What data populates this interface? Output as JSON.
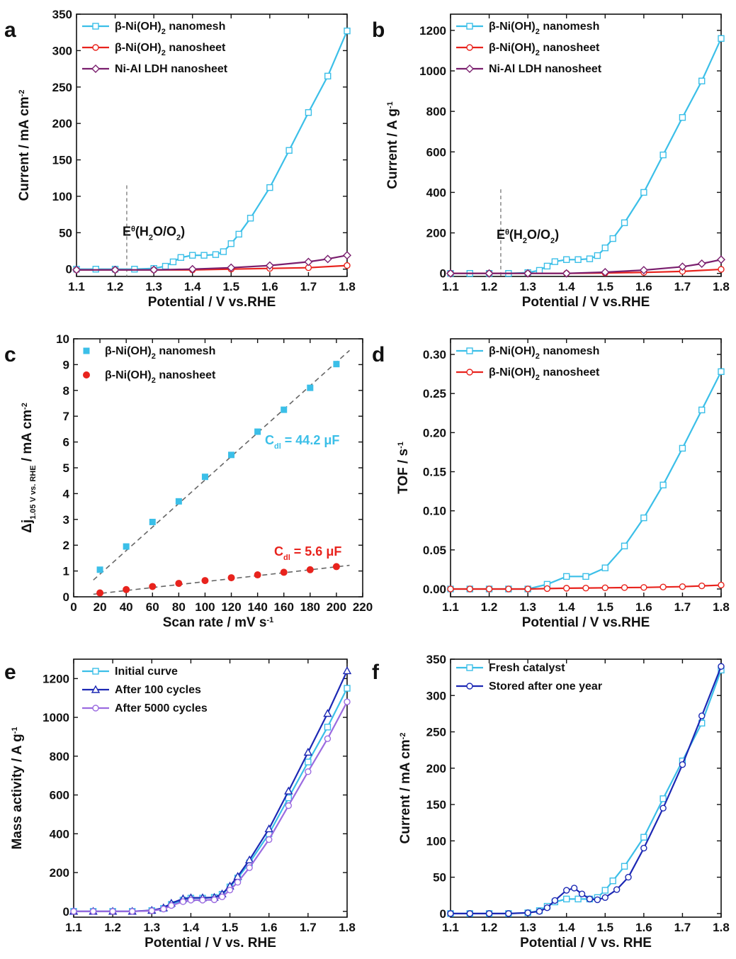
{
  "chart_data": [
    {
      "panel": "a",
      "type": "line",
      "xlabel": "Potential / V vs.RHE",
      "ylabel": "Current / mA cm-2",
      "ylabel_parts": [
        "Current / mA cm",
        "-2"
      ],
      "xlim": [
        1.1,
        1.8
      ],
      "ylim": [
        -10,
        350
      ],
      "xticks": [
        1.1,
        1.2,
        1.3,
        1.4,
        1.5,
        1.6,
        1.7,
        1.8
      ],
      "yticks": [
        0,
        50,
        100,
        150,
        200,
        250,
        300,
        350
      ],
      "annotation": {
        "text_parts": [
          "E",
          "θ",
          "(H",
          "2",
          "O/O",
          "2",
          ")"
        ],
        "x": 1.23
      },
      "series": [
        {
          "name": "β-Ni(OH)2 nanomesh",
          "name_parts": [
            "β-Ni(OH)",
            "2",
            " nanomesh"
          ],
          "color": "#3bbfe8",
          "marker": "square",
          "x": [
            1.1,
            1.15,
            1.2,
            1.25,
            1.3,
            1.33,
            1.35,
            1.37,
            1.4,
            1.43,
            1.46,
            1.48,
            1.5,
            1.52,
            1.55,
            1.6,
            1.65,
            1.7,
            1.75,
            1.8
          ],
          "y": [
            0,
            0,
            0,
            0,
            1,
            4,
            10,
            16,
            19,
            19,
            20,
            24,
            35,
            48,
            70,
            112,
            163,
            215,
            265,
            327
          ]
        },
        {
          "name": "β-Ni(OH)2 nanosheet",
          "name_parts": [
            "β-Ni(OH)",
            "2",
            " nanosheet"
          ],
          "color": "#e8231d",
          "marker": "circle",
          "x": [
            1.1,
            1.2,
            1.3,
            1.4,
            1.5,
            1.6,
            1.7,
            1.8
          ],
          "y": [
            -1,
            -1,
            -1,
            -1,
            0,
            1,
            2,
            5
          ]
        },
        {
          "name": "Ni-Al LDH nanosheet",
          "name_parts": [
            "Ni-Al LDH nanosheet"
          ],
          "color": "#7a1f6e",
          "marker": "diamond",
          "x": [
            1.1,
            1.2,
            1.3,
            1.4,
            1.5,
            1.6,
            1.7,
            1.75,
            1.8
          ],
          "y": [
            -1,
            -1,
            -1,
            0,
            2,
            5,
            10,
            14,
            19
          ]
        }
      ]
    },
    {
      "panel": "b",
      "type": "line",
      "xlabel": "Potential / V vs.RHE",
      "ylabel": "Current / A g-1",
      "ylabel_parts": [
        "Current / A g",
        "-1"
      ],
      "xlim": [
        1.1,
        1.8
      ],
      "ylim": [
        -15,
        1280
      ],
      "xticks": [
        1.1,
        1.2,
        1.3,
        1.4,
        1.5,
        1.6,
        1.7,
        1.8
      ],
      "yticks": [
        0,
        200,
        400,
        600,
        800,
        1000,
        1200
      ],
      "annotation": {
        "text_parts": [
          "E",
          "θ",
          "(H",
          "2",
          "O/O",
          "2",
          ")"
        ],
        "x": 1.23
      },
      "series": [
        {
          "name": "β-Ni(OH)2 nanomesh",
          "name_parts": [
            "β-Ni(OH)",
            "2",
            " nanomesh"
          ],
          "color": "#3bbfe8",
          "marker": "square",
          "x": [
            1.1,
            1.15,
            1.2,
            1.25,
            1.3,
            1.33,
            1.35,
            1.37,
            1.4,
            1.43,
            1.46,
            1.48,
            1.5,
            1.52,
            1.55,
            1.6,
            1.65,
            1.7,
            1.75,
            1.8
          ],
          "y": [
            0,
            0,
            0,
            0,
            4,
            15,
            36,
            58,
            68,
            68,
            72,
            88,
            126,
            172,
            250,
            400,
            585,
            770,
            950,
            1160
          ]
        },
        {
          "name": "β-Ni(OH)2 nanosheet",
          "name_parts": [
            "β-Ni(OH)",
            "2",
            " nanosheet"
          ],
          "color": "#e8231d",
          "marker": "circle",
          "x": [
            1.1,
            1.2,
            1.3,
            1.4,
            1.5,
            1.6,
            1.7,
            1.8
          ],
          "y": [
            0,
            0,
            0,
            0,
            2,
            5,
            10,
            20
          ]
        },
        {
          "name": "Ni-Al LDH nanosheet",
          "name_parts": [
            "Ni-Al LDH nanosheet"
          ],
          "color": "#7a1f6e",
          "marker": "diamond",
          "x": [
            1.1,
            1.2,
            1.3,
            1.4,
            1.5,
            1.6,
            1.7,
            1.75,
            1.8
          ],
          "y": [
            0,
            0,
            0,
            0,
            6,
            16,
            33,
            48,
            68
          ]
        }
      ]
    },
    {
      "panel": "c",
      "type": "scatter",
      "xlabel": "Scan rate / mV s-1",
      "xlabel_parts": [
        "Scan rate / mV s",
        "-1"
      ],
      "ylabel": "Δj1.05 V vs. RHE / mA cm-2",
      "ylabel_parts": [
        "Δj",
        "1.05 V vs. RHE",
        " / mA cm",
        "-2"
      ],
      "xlim": [
        0,
        220
      ],
      "ylim": [
        0,
        10
      ],
      "xticks": [
        0,
        20,
        40,
        60,
        80,
        100,
        120,
        140,
        160,
        180,
        200,
        220
      ],
      "yticks": [
        0,
        1,
        2,
        3,
        4,
        5,
        6,
        7,
        8,
        9,
        10
      ],
      "series": [
        {
          "name": "β-Ni(OH)2 nanomesh",
          "name_parts": [
            "β-Ni(OH)",
            "2",
            " nanomesh"
          ],
          "color": "#3bbfe8",
          "marker": "filled-square",
          "x": [
            20,
            40,
            60,
            80,
            100,
            120,
            140,
            160,
            180,
            200
          ],
          "y": [
            1.05,
            1.95,
            2.9,
            3.7,
            4.65,
            5.5,
            6.4,
            7.25,
            8.1,
            9.02
          ],
          "fit": {
            "x": [
              15,
              210
            ],
            "y": [
              0.65,
              9.55
            ]
          },
          "annotation_parts": [
            "C",
            "dl",
            " = 44.2 μF"
          ]
        },
        {
          "name": "β-Ni(OH)2 nanosheet",
          "name_parts": [
            "β-Ni(OH)",
            "2",
            " nanosheet"
          ],
          "color": "#e8231d",
          "marker": "filled-circle",
          "x": [
            20,
            40,
            60,
            80,
            100,
            120,
            140,
            160,
            180,
            200
          ],
          "y": [
            0.15,
            0.28,
            0.4,
            0.52,
            0.63,
            0.74,
            0.85,
            0.95,
            1.05,
            1.17
          ],
          "fit": {
            "x": [
              15,
              210
            ],
            "y": [
              0.1,
              1.22
            ]
          },
          "annotation_parts": [
            "C",
            "dl",
            " = 5.6 μF"
          ]
        }
      ]
    },
    {
      "panel": "d",
      "type": "line",
      "xlabel": "Potential / V vs.RHE",
      "ylabel": "TOF / s-1",
      "ylabel_parts": [
        "TOF / s",
        "-1"
      ],
      "xlim": [
        1.1,
        1.8
      ],
      "ylim": [
        -0.01,
        0.32
      ],
      "xticks": [
        1.1,
        1.2,
        1.3,
        1.4,
        1.5,
        1.6,
        1.7,
        1.8
      ],
      "yticks": [
        0.0,
        0.05,
        0.1,
        0.15,
        0.2,
        0.25,
        0.3
      ],
      "ytick_labels": [
        "0.00",
        "0.05",
        "0.10",
        "0.15",
        "0.20",
        "0.25",
        "0.30"
      ],
      "series": [
        {
          "name": "β-Ni(OH)2 nanomesh",
          "name_parts": [
            "β-Ni(OH)",
            "2",
            " nanomesh"
          ],
          "color": "#3bbfe8",
          "marker": "square",
          "x": [
            1.1,
            1.15,
            1.2,
            1.25,
            1.3,
            1.35,
            1.4,
            1.45,
            1.5,
            1.55,
            1.6,
            1.65,
            1.7,
            1.75,
            1.8
          ],
          "y": [
            0,
            0,
            0,
            0,
            0,
            0.006,
            0.016,
            0.016,
            0.027,
            0.055,
            0.091,
            0.133,
            0.18,
            0.229,
            0.278
          ]
        },
        {
          "name": "β-Ni(OH)2 nanosheet",
          "name_parts": [
            "β-Ni(OH)",
            "2",
            " nanosheet"
          ],
          "color": "#e8231d",
          "marker": "circle",
          "x": [
            1.1,
            1.15,
            1.2,
            1.25,
            1.3,
            1.35,
            1.4,
            1.45,
            1.5,
            1.55,
            1.6,
            1.65,
            1.7,
            1.75,
            1.8
          ],
          "y": [
            0,
            0,
            0,
            0,
            0,
            0.0005,
            0.001,
            0.0012,
            0.0015,
            0.0018,
            0.002,
            0.0025,
            0.003,
            0.004,
            0.005
          ]
        }
      ]
    },
    {
      "panel": "e",
      "type": "line",
      "xlabel": "Potential / V vs. RHE",
      "ylabel": "Mass activity / A g-1",
      "ylabel_parts": [
        "Mass activity / A g",
        "-1"
      ],
      "xlim": [
        1.1,
        1.8
      ],
      "ylim": [
        -30,
        1300
      ],
      "xticks": [
        1.1,
        1.2,
        1.3,
        1.4,
        1.5,
        1.6,
        1.7,
        1.8
      ],
      "yticks": [
        0,
        200,
        400,
        600,
        800,
        1000,
        1200
      ],
      "series": [
        {
          "name": "Initial curve",
          "name_parts": [
            "Initial curve"
          ],
          "color": "#3bbfe8",
          "marker": "square",
          "x": [
            1.1,
            1.15,
            1.2,
            1.25,
            1.3,
            1.33,
            1.35,
            1.38,
            1.4,
            1.43,
            1.46,
            1.48,
            1.5,
            1.52,
            1.55,
            1.6,
            1.65,
            1.7,
            1.75,
            1.8
          ],
          "y": [
            0,
            0,
            0,
            0,
            4,
            15,
            36,
            58,
            68,
            68,
            72,
            88,
            126,
            172,
            250,
            400,
            585,
            770,
            950,
            1150
          ]
        },
        {
          "name": "After 100 cycles",
          "name_parts": [
            "After 100 cycles"
          ],
          "color": "#1c28b4",
          "marker": "triangle",
          "x": [
            1.1,
            1.15,
            1.2,
            1.25,
            1.3,
            1.33,
            1.35,
            1.38,
            1.4,
            1.43,
            1.46,
            1.48,
            1.5,
            1.52,
            1.55,
            1.6,
            1.65,
            1.7,
            1.75,
            1.8
          ],
          "y": [
            0,
            0,
            0,
            0,
            5,
            18,
            42,
            65,
            70,
            70,
            72,
            90,
            130,
            180,
            265,
            425,
            620,
            820,
            1020,
            1240
          ]
        },
        {
          "name": "After 5000 cycles",
          "name_parts": [
            "After 5000 cycles"
          ],
          "color": "#9b6be0",
          "marker": "circle",
          "x": [
            1.1,
            1.15,
            1.2,
            1.25,
            1.3,
            1.33,
            1.35,
            1.38,
            1.4,
            1.43,
            1.46,
            1.48,
            1.5,
            1.52,
            1.55,
            1.6,
            1.65,
            1.7,
            1.75,
            1.8
          ],
          "y": [
            0,
            0,
            0,
            0,
            3,
            12,
            30,
            50,
            58,
            58,
            60,
            75,
            110,
            150,
            225,
            370,
            545,
            720,
            890,
            1080
          ]
        }
      ]
    },
    {
      "panel": "f",
      "type": "line",
      "xlabel": "Potential / V vs. RHE",
      "ylabel": "Current / mA cm-2",
      "ylabel_parts": [
        "Current / mA cm",
        "-2"
      ],
      "xlim": [
        1.1,
        1.8
      ],
      "ylim": [
        -5,
        350
      ],
      "xticks": [
        1.1,
        1.2,
        1.3,
        1.4,
        1.5,
        1.6,
        1.7,
        1.8
      ],
      "yticks": [
        0,
        50,
        100,
        150,
        200,
        250,
        300,
        350
      ],
      "series": [
        {
          "name": "Fresh catalyst",
          "name_parts": [
            "Fresh catalyst"
          ],
          "color": "#3bbfe8",
          "marker": "square",
          "x": [
            1.1,
            1.15,
            1.2,
            1.25,
            1.3,
            1.33,
            1.35,
            1.37,
            1.4,
            1.43,
            1.46,
            1.48,
            1.5,
            1.52,
            1.55,
            1.6,
            1.65,
            1.7,
            1.75,
            1.8
          ],
          "y": [
            0,
            0,
            0,
            0,
            1,
            4,
            10,
            16,
            20,
            20,
            20,
            22,
            32,
            45,
            65,
            105,
            158,
            210,
            262,
            335
          ]
        },
        {
          "name": "Stored after one year",
          "name_parts": [
            "Stored after one year"
          ],
          "color": "#1c28b4",
          "marker": "circle",
          "x": [
            1.1,
            1.15,
            1.2,
            1.25,
            1.3,
            1.33,
            1.35,
            1.37,
            1.4,
            1.42,
            1.44,
            1.46,
            1.48,
            1.5,
            1.53,
            1.56,
            1.6,
            1.65,
            1.7,
            1.75,
            1.8
          ],
          "y": [
            0,
            0,
            0,
            0,
            1,
            3,
            8,
            18,
            32,
            35,
            27,
            20,
            19,
            22,
            33,
            50,
            90,
            145,
            205,
            272,
            340
          ]
        }
      ]
    }
  ]
}
